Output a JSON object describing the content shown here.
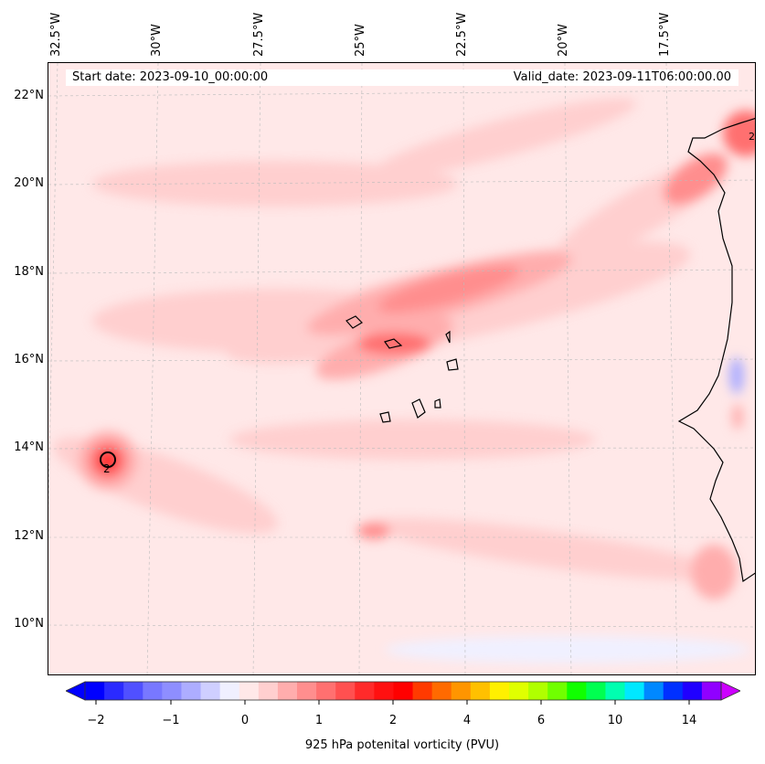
{
  "header": {
    "start_date": "Start date: 2023-09-10_00:00:00",
    "valid_date": "Valid_date: 2023-09-11T06:00:00.00"
  },
  "lat_labels": [
    "22°N",
    "20°N",
    "18°N",
    "16°N",
    "14°N",
    "12°N",
    "10°N"
  ],
  "lon_labels": [
    "32.5°W",
    "30°W",
    "27.5°W",
    "25°W",
    "22.5°W",
    "20°W",
    "17.5°W"
  ],
  "contour_label": "2",
  "colorbar": {
    "label": "925 hPa potenital vorticity (PVU)",
    "ticks": [
      "−2",
      "−1",
      "0",
      "1",
      "2",
      "4",
      "6",
      "10",
      "14"
    ],
    "colors": [
      "#0000ff",
      "#2a2aff",
      "#5050ff",
      "#7878ff",
      "#8e8eff",
      "#adadff",
      "#cfcfff",
      "#f0f0ff",
      "#ffe8e8",
      "#ffcfcf",
      "#ffadad",
      "#ff8e8e",
      "#ff7070",
      "#ff5050",
      "#ff2a2a",
      "#ff1010",
      "#ff0000",
      "#ff3a00",
      "#ff6a00",
      "#ff9500",
      "#ffc000",
      "#fff000",
      "#e0ff00",
      "#b0ff00",
      "#70ff00",
      "#10ff00",
      "#00ff50",
      "#00ffb0",
      "#00e8ff",
      "#0088ff",
      "#0030ff",
      "#2000ff",
      "#9000ff"
    ],
    "under_color": "#0000ff",
    "over_color": "#cc00ff"
  }
}
